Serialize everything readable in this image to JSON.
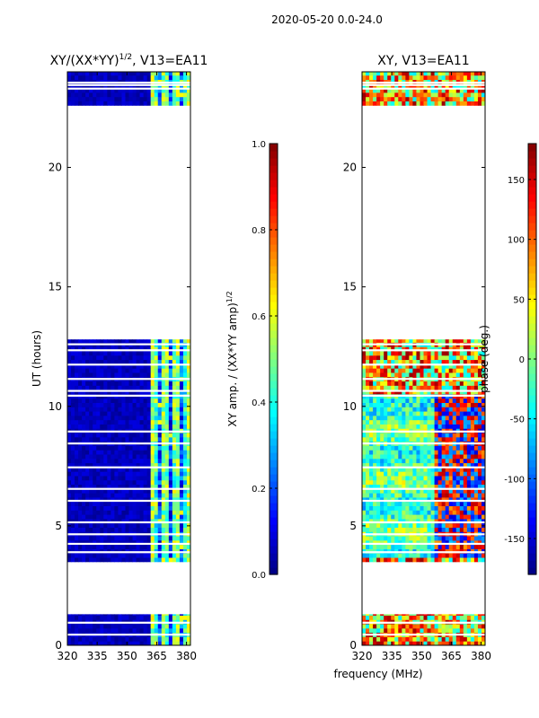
{
  "figure": {
    "suptitle": "2020-05-20 0.0-24.0",
    "shared_xlabel": "frequency (MHz)"
  },
  "chart_data": [
    {
      "type": "heatmap",
      "title_main": "XY/(XX*YY)",
      "title_exp": "1/2",
      "title_suffix": ", V13=EA11",
      "xlabel": "",
      "ylabel": "UT (hours)",
      "xlim": [
        320,
        382
      ],
      "ylim": [
        0,
        24
      ],
      "xticks": [
        320,
        335,
        350,
        365,
        380
      ],
      "yticks": [
        0,
        5,
        10,
        15,
        20
      ],
      "data_blocks_hours": [
        [
          0.0,
          1.3
        ],
        [
          3.5,
          12.8
        ],
        [
          22.6,
          24.0
        ]
      ],
      "gap_lines_hours": [
        0.45,
        0.95,
        3.9,
        4.25,
        4.65,
        5.15,
        6.05,
        6.55,
        7.45,
        8.45,
        8.95,
        10.45,
        10.65,
        11.15,
        11.75,
        12.35,
        12.6,
        23.3,
        23.45,
        23.55
      ],
      "pattern": "amplitude",
      "colorbar": {
        "label_main": "XY amp. / (XX*YY amp)",
        "label_exp": "1/2",
        "ticks": [
          "0.0",
          "0.2",
          "0.4",
          "0.6",
          "0.8",
          "1.0"
        ],
        "vmin": 0.0,
        "vmax": 1.0
      }
    },
    {
      "type": "heatmap",
      "title_main": "XY, V13=EA11",
      "title_exp": "",
      "title_suffix": "",
      "xlabel": "frequency (MHz)",
      "ylabel": "",
      "xlim": [
        320,
        382
      ],
      "ylim": [
        0,
        24
      ],
      "xticks": [
        320,
        335,
        350,
        365,
        380
      ],
      "yticks": [
        0,
        5,
        10,
        15,
        20
      ],
      "data_blocks_hours": [
        [
          0.0,
          1.3
        ],
        [
          3.5,
          12.8
        ],
        [
          22.6,
          24.0
        ]
      ],
      "gap_lines_hours": [
        0.45,
        0.95,
        3.9,
        4.25,
        4.65,
        5.15,
        6.05,
        6.55,
        7.45,
        8.45,
        8.95,
        10.45,
        10.65,
        11.15,
        11.75,
        12.35,
        12.6,
        23.3,
        23.45,
        23.55
      ],
      "pattern": "phase",
      "colorbar": {
        "label_main": "phase (deg.)",
        "label_exp": "",
        "ticks": [
          "-150",
          "-100",
          "-50",
          "0",
          "50",
          "100",
          "150"
        ],
        "vmin": -180,
        "vmax": 180
      }
    }
  ]
}
